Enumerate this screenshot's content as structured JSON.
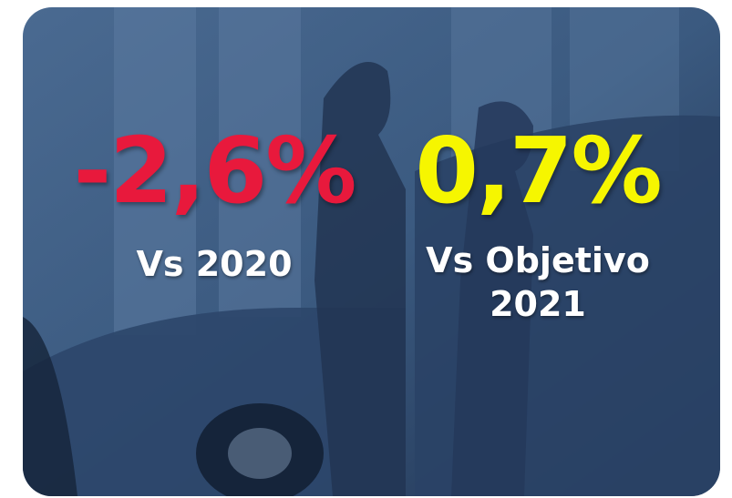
{
  "metrics": [
    {
      "value": "-2,6%",
      "label": "Vs 2020"
    },
    {
      "value": "0,7%",
      "label": "Vs Objetivo 2021"
    }
  ]
}
